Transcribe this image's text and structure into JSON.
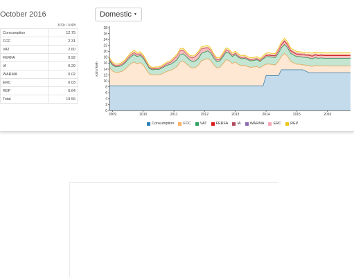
{
  "card": {
    "month_title": "October 2016",
    "unit_header": "KSh / kWh",
    "rates": [
      {
        "label": "Consumption",
        "value": "12.75"
      },
      {
        "label": "FCC",
        "value": "2.31"
      },
      {
        "label": "VAT",
        "value": "2.60"
      },
      {
        "label": "FERFA",
        "value": "0.92"
      },
      {
        "label": "IA",
        "value": "0.29"
      },
      {
        "label": "WARMA",
        "value": "0.02"
      },
      {
        "label": "ERC",
        "value": "0.03"
      },
      {
        "label": "REP",
        "value": "0.64"
      }
    ],
    "total": {
      "label": "Total",
      "value": "19.56"
    }
  },
  "tariff_select": {
    "label": "Domestic"
  },
  "chart_data": {
    "type": "area",
    "stacked": true,
    "ylabel": "KSh / kWh",
    "ylim": [
      0,
      28
    ],
    "yticks": [
      0,
      2,
      4,
      6,
      8,
      10,
      12,
      14,
      16,
      18,
      20,
      22,
      24,
      26,
      28
    ],
    "xlim": [
      2008.9,
      2016.75
    ],
    "xticks": [
      2009,
      2010,
      2011,
      2012,
      2013,
      2014,
      2015,
      2016
    ],
    "grid": false,
    "legend_position": "bottom",
    "x": [
      2008.9,
      2009.0,
      2009.1,
      2009.2,
      2009.3,
      2009.4,
      2009.5,
      2009.6,
      2009.7,
      2009.8,
      2009.9,
      2010.0,
      2010.1,
      2010.2,
      2010.3,
      2010.4,
      2010.5,
      2010.6,
      2010.7,
      2010.8,
      2010.9,
      2011.0,
      2011.1,
      2011.2,
      2011.3,
      2011.4,
      2011.5,
      2011.6,
      2011.7,
      2011.8,
      2011.9,
      2012.0,
      2012.1,
      2012.2,
      2012.3,
      2012.4,
      2012.5,
      2012.6,
      2012.7,
      2012.8,
      2012.9,
      2013.0,
      2013.1,
      2013.2,
      2013.3,
      2013.4,
      2013.5,
      2013.6,
      2013.7,
      2013.8,
      2013.9,
      2014.0,
      2014.1,
      2014.2,
      2014.3,
      2014.4,
      2014.5,
      2014.6,
      2014.7,
      2014.8,
      2014.9,
      2015.0,
      2015.1,
      2015.2,
      2015.3,
      2015.4,
      2015.5,
      2015.6,
      2015.7,
      2015.8,
      2015.9,
      2016.0,
      2016.1,
      2016.2,
      2016.3,
      2016.4,
      2016.5,
      2016.6,
      2016.75
    ],
    "series": [
      {
        "name": "Consumption",
        "color": "#2c7fb8",
        "values": [
          8.35,
          8.35,
          8.35,
          8.35,
          8.35,
          8.35,
          8.35,
          8.35,
          8.35,
          8.35,
          8.35,
          8.35,
          8.35,
          8.35,
          8.35,
          8.35,
          8.35,
          8.35,
          8.35,
          8.35,
          8.35,
          8.35,
          8.35,
          8.35,
          8.35,
          8.35,
          8.35,
          8.35,
          8.35,
          8.35,
          8.35,
          8.35,
          8.35,
          8.35,
          8.35,
          8.35,
          8.35,
          8.35,
          8.35,
          8.35,
          8.35,
          8.35,
          8.35,
          8.35,
          8.35,
          8.35,
          8.35,
          8.35,
          8.35,
          8.35,
          8.35,
          11.8,
          11.8,
          11.8,
          11.8,
          11.8,
          13.8,
          13.8,
          13.8,
          13.8,
          13.8,
          13.8,
          13.8,
          13.8,
          13.3,
          12.75,
          12.75,
          12.75,
          12.75,
          12.75,
          12.75,
          12.75,
          12.75,
          12.75,
          12.75,
          12.75,
          12.75,
          12.75,
          12.75
        ]
      },
      {
        "name": "FCC",
        "color": "#fdae61",
        "values": [
          6.2,
          5.0,
          4.5,
          4.6,
          4.8,
          5.5,
          6.5,
          7.5,
          8.0,
          7.5,
          7.8,
          7.0,
          5.5,
          4.0,
          3.6,
          3.8,
          3.7,
          4.0,
          4.5,
          5.0,
          5.2,
          5.8,
          6.5,
          8.0,
          8.3,
          7.5,
          6.5,
          6.0,
          6.2,
          7.0,
          8.5,
          8.8,
          9.2,
          8.5,
          7.0,
          6.0,
          6.3,
          7.5,
          8.8,
          8.5,
          7.5,
          8.0,
          7.2,
          6.8,
          7.0,
          6.5,
          6.2,
          6.4,
          6.5,
          6.0,
          6.8,
          3.8,
          3.9,
          3.7,
          3.6,
          4.8,
          4.5,
          5.5,
          4.5,
          2.8,
          2.3,
          1.8,
          1.8,
          1.6,
          2.0,
          2.4,
          2.1,
          2.5,
          2.3,
          2.4,
          2.3,
          2.3,
          2.3,
          2.3,
          2.3,
          2.3,
          2.3,
          2.3,
          2.31
        ]
      },
      {
        "name": "VAT",
        "color": "#2ca25f",
        "values": [
          2.2,
          2.0,
          1.9,
          1.9,
          2.0,
          2.1,
          2.3,
          2.4,
          2.5,
          2.4,
          2.4,
          2.3,
          2.1,
          1.9,
          1.8,
          1.8,
          1.8,
          1.9,
          2.0,
          2.0,
          2.1,
          2.2,
          2.3,
          2.5,
          2.5,
          2.4,
          2.3,
          2.2,
          2.2,
          2.3,
          2.5,
          2.6,
          2.6,
          2.5,
          2.3,
          2.2,
          2.2,
          2.4,
          2.6,
          2.5,
          2.4,
          2.5,
          2.4,
          2.3,
          2.3,
          2.3,
          2.2,
          2.2,
          2.3,
          2.2,
          2.3,
          2.5,
          2.5,
          2.5,
          2.5,
          2.7,
          2.9,
          3.0,
          2.9,
          2.7,
          2.6,
          2.6,
          2.6,
          2.6,
          2.6,
          2.6,
          2.6,
          2.6,
          2.6,
          2.6,
          2.6,
          2.6,
          2.6,
          2.6,
          2.6,
          2.6,
          2.6,
          2.6,
          2.6
        ]
      },
      {
        "name": "FERFA",
        "color": "#d7191c",
        "values": [
          0.5,
          0.4,
          0.4,
          0.4,
          0.5,
          0.5,
          0.6,
          0.6,
          0.7,
          0.7,
          0.6,
          0.5,
          0.4,
          0.3,
          0.3,
          0.3,
          0.4,
          0.4,
          0.5,
          0.6,
          0.7,
          1.0,
          1.2,
          1.3,
          1.2,
          1.0,
          1.0,
          1.2,
          1.5,
          1.7,
          1.5,
          1.3,
          1.1,
          1.0,
          0.8,
          0.6,
          0.5,
          0.6,
          0.7,
          0.6,
          0.5,
          0.5,
          0.5,
          0.4,
          0.4,
          0.4,
          0.4,
          0.4,
          0.4,
          0.4,
          0.4,
          0.5,
          0.5,
          0.5,
          0.6,
          0.9,
          1.0,
          1.1,
          1.0,
          0.9,
          0.8,
          0.8,
          0.7,
          0.8,
          0.8,
          0.9,
          0.9,
          0.9,
          0.9,
          0.9,
          0.9,
          0.9,
          0.9,
          0.9,
          0.9,
          0.9,
          0.9,
          0.9,
          0.92
        ]
      },
      {
        "name": "IA",
        "color": "#b04a5a",
        "values": [
          0.1,
          0.1,
          0.1,
          0.1,
          0.1,
          0.1,
          0.1,
          0.1,
          0.1,
          0.1,
          0.1,
          0.1,
          0.1,
          0.1,
          0.1,
          0.1,
          0.1,
          0.1,
          0.1,
          0.1,
          0.1,
          0.1,
          0.1,
          0.1,
          0.1,
          0.1,
          0.1,
          0.1,
          0.1,
          0.1,
          0.1,
          0.1,
          0.1,
          0.1,
          0.1,
          0.1,
          0.1,
          0.1,
          0.1,
          0.1,
          0.1,
          0.1,
          0.1,
          0.1,
          0.1,
          0.1,
          0.1,
          0.1,
          0.1,
          0.1,
          0.1,
          0.2,
          0.2,
          0.2,
          0.2,
          0.2,
          0.3,
          0.3,
          0.3,
          0.3,
          0.3,
          0.3,
          0.3,
          0.3,
          0.3,
          0.3,
          0.3,
          0.3,
          0.3,
          0.3,
          0.3,
          0.3,
          0.3,
          0.3,
          0.3,
          0.3,
          0.3,
          0.3,
          0.29
        ]
      },
      {
        "name": "WARMA",
        "color": "#8c6bb1",
        "values": [
          0.02,
          0.02,
          0.02,
          0.02,
          0.02,
          0.02,
          0.02,
          0.02,
          0.02,
          0.02,
          0.02,
          0.02,
          0.02,
          0.02,
          0.02,
          0.02,
          0.02,
          0.02,
          0.02,
          0.02,
          0.02,
          0.02,
          0.02,
          0.02,
          0.02,
          0.02,
          0.02,
          0.02,
          0.02,
          0.02,
          0.02,
          0.02,
          0.02,
          0.02,
          0.02,
          0.02,
          0.02,
          0.02,
          0.02,
          0.02,
          0.02,
          0.02,
          0.02,
          0.02,
          0.02,
          0.02,
          0.02,
          0.02,
          0.02,
          0.02,
          0.02,
          0.02,
          0.02,
          0.02,
          0.02,
          0.02,
          0.02,
          0.02,
          0.02,
          0.02,
          0.02,
          0.02,
          0.02,
          0.02,
          0.02,
          0.02,
          0.02,
          0.02,
          0.02,
          0.02,
          0.02,
          0.02,
          0.02,
          0.02,
          0.02,
          0.02,
          0.02,
          0.02,
          0.02
        ]
      },
      {
        "name": "ERC",
        "color": "#f4a6b8",
        "values": [
          0.03,
          0.03,
          0.03,
          0.03,
          0.03,
          0.03,
          0.03,
          0.03,
          0.03,
          0.03,
          0.03,
          0.03,
          0.03,
          0.03,
          0.03,
          0.03,
          0.03,
          0.03,
          0.03,
          0.03,
          0.03,
          0.03,
          0.03,
          0.03,
          0.03,
          0.03,
          0.03,
          0.03,
          0.03,
          0.03,
          0.03,
          0.03,
          0.03,
          0.03,
          0.03,
          0.03,
          0.03,
          0.03,
          0.03,
          0.03,
          0.03,
          0.03,
          0.03,
          0.03,
          0.03,
          0.03,
          0.03,
          0.03,
          0.03,
          0.03,
          0.03,
          0.03,
          0.03,
          0.03,
          0.03,
          0.03,
          0.03,
          0.03,
          0.03,
          0.03,
          0.03,
          0.03,
          0.03,
          0.03,
          0.03,
          0.03,
          0.03,
          0.03,
          0.03,
          0.03,
          0.03,
          0.03,
          0.03,
          0.03,
          0.03,
          0.03,
          0.03,
          0.03,
          0.03
        ]
      },
      {
        "name": "REP",
        "color": "#f0c419",
        "values": [
          0.5,
          0.45,
          0.4,
          0.4,
          0.42,
          0.45,
          0.5,
          0.55,
          0.6,
          0.55,
          0.55,
          0.5,
          0.45,
          0.4,
          0.35,
          0.35,
          0.35,
          0.4,
          0.4,
          0.45,
          0.45,
          0.5,
          0.5,
          0.55,
          0.55,
          0.5,
          0.5,
          0.5,
          0.5,
          0.55,
          0.6,
          0.6,
          0.6,
          0.55,
          0.5,
          0.5,
          0.5,
          0.55,
          0.6,
          0.55,
          0.55,
          0.55,
          0.55,
          0.5,
          0.5,
          0.5,
          0.5,
          0.5,
          0.5,
          0.5,
          0.5,
          0.55,
          0.55,
          0.55,
          0.55,
          0.6,
          0.65,
          0.7,
          0.65,
          0.6,
          0.6,
          0.6,
          0.6,
          0.6,
          0.6,
          0.62,
          0.62,
          0.63,
          0.63,
          0.64,
          0.64,
          0.64,
          0.64,
          0.64,
          0.64,
          0.64,
          0.64,
          0.64,
          0.64
        ]
      }
    ]
  }
}
